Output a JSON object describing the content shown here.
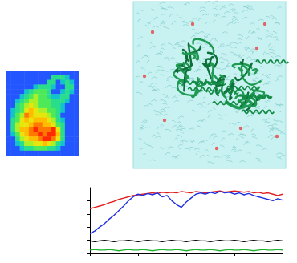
{
  "chart_data": [
    {
      "type": "heatmap",
      "cells": [
        [
          0,
          0,
          0,
          0,
          0,
          0,
          0,
          0,
          0,
          0,
          0,
          0,
          0,
          0,
          0,
          0
        ],
        [
          0,
          0,
          0,
          0,
          0,
          0,
          0,
          0,
          0,
          0,
          3,
          3,
          3,
          2,
          0,
          0
        ],
        [
          0,
          0,
          0,
          0,
          0,
          0,
          0,
          0,
          0,
          3,
          3,
          0,
          2,
          3,
          2,
          0
        ],
        [
          0,
          0,
          0,
          0,
          0,
          0,
          2,
          3,
          3,
          3,
          2,
          0,
          0,
          3,
          3,
          0
        ],
        [
          0,
          0,
          0,
          0,
          2,
          3,
          4,
          4,
          4,
          3,
          0,
          0,
          2,
          3,
          2,
          0
        ],
        [
          0,
          0,
          0,
          2,
          3,
          4,
          5,
          4,
          4,
          3,
          2,
          2,
          3,
          3,
          0,
          0
        ],
        [
          0,
          0,
          2,
          3,
          4,
          5,
          5,
          4,
          4,
          4,
          3,
          3,
          3,
          2,
          0,
          0
        ],
        [
          0,
          0,
          3,
          4,
          5,
          6,
          5,
          4,
          4,
          4,
          3,
          3,
          2,
          0,
          0,
          0
        ],
        [
          0,
          2,
          3,
          4,
          6,
          7,
          6,
          5,
          5,
          4,
          4,
          3,
          2,
          0,
          0,
          0
        ],
        [
          0,
          2,
          4,
          5,
          8,
          7,
          6,
          6,
          6,
          5,
          4,
          3,
          0,
          0,
          0,
          0
        ],
        [
          0,
          3,
          4,
          6,
          7,
          6,
          7,
          7,
          7,
          6,
          5,
          3,
          2,
          0,
          0,
          0
        ],
        [
          0,
          3,
          5,
          6,
          6,
          7,
          8,
          8,
          7,
          7,
          6,
          4,
          3,
          0,
          0,
          0
        ],
        [
          0,
          3,
          5,
          7,
          7,
          8,
          9,
          8,
          8,
          8,
          9,
          6,
          3,
          0,
          0,
          0
        ],
        [
          0,
          2,
          4,
          6,
          7,
          8,
          8,
          9,
          8,
          9,
          9,
          7,
          3,
          0,
          0,
          0
        ],
        [
          0,
          0,
          3,
          5,
          6,
          7,
          7,
          8,
          9,
          9,
          8,
          6,
          3,
          0,
          0,
          0
        ],
        [
          0,
          0,
          2,
          3,
          5,
          5,
          6,
          6,
          7,
          6,
          5,
          3,
          2,
          0,
          0,
          0
        ],
        [
          0,
          0,
          0,
          2,
          3,
          3,
          4,
          4,
          4,
          3,
          3,
          2,
          0,
          0,
          0,
          0
        ],
        [
          0,
          0,
          0,
          0,
          0,
          0,
          0,
          0,
          0,
          0,
          0,
          0,
          0,
          0,
          0,
          0
        ]
      ]
    },
    {
      "type": "line",
      "x": [
        0,
        1,
        2,
        3,
        4,
        5,
        6,
        7,
        8,
        9,
        10,
        11,
        12,
        13,
        14,
        15,
        16,
        17,
        18,
        19,
        20,
        21,
        22,
        23,
        24,
        25,
        26,
        27,
        28,
        29,
        30,
        31,
        32,
        33,
        34,
        35,
        36,
        37,
        38,
        39,
        40
      ],
      "xlim": [
        0,
        40
      ],
      "xticks": [
        0,
        10,
        20,
        30,
        40
      ],
      "ylim": [
        0,
        1
      ],
      "yticks": [
        0,
        0.2,
        0.4,
        0.6,
        0.8,
        1
      ],
      "tick_labels": false,
      "grid": false,
      "series": [
        {
          "color": "#e02020",
          "values": [
            0.68,
            0.7,
            0.72,
            0.74,
            0.77,
            0.79,
            0.82,
            0.84,
            0.86,
            0.88,
            0.89,
            0.9,
            0.91,
            0.92,
            0.91,
            0.93,
            0.92,
            0.93,
            0.92,
            0.94,
            0.93,
            0.92,
            0.94,
            0.93,
            0.92,
            0.93,
            0.94,
            0.95,
            0.93,
            0.94,
            0.95,
            0.94,
            0.93,
            0.94,
            0.92,
            0.93,
            0.91,
            0.92,
            0.9,
            0.88,
            0.9
          ]
        },
        {
          "color": "#2030e0",
          "values": [
            0.3,
            0.34,
            0.4,
            0.45,
            0.52,
            0.58,
            0.65,
            0.72,
            0.8,
            0.86,
            0.9,
            0.88,
            0.91,
            0.89,
            0.92,
            0.86,
            0.88,
            0.8,
            0.74,
            0.7,
            0.78,
            0.84,
            0.9,
            0.92,
            0.9,
            0.93,
            0.91,
            0.94,
            0.92,
            0.93,
            0.9,
            0.92,
            0.89,
            0.91,
            0.88,
            0.86,
            0.84,
            0.82,
            0.8,
            0.83,
            0.81
          ]
        },
        {
          "color": "#000000",
          "values": [
            0.19,
            0.18,
            0.19,
            0.2,
            0.19,
            0.18,
            0.19,
            0.19,
            0.2,
            0.19,
            0.18,
            0.19,
            0.2,
            0.19,
            0.19,
            0.18,
            0.19,
            0.2,
            0.19,
            0.19,
            0.18,
            0.19,
            0.2,
            0.19,
            0.19,
            0.18,
            0.19,
            0.2,
            0.19,
            0.19,
            0.2,
            0.19,
            0.18,
            0.19,
            0.2,
            0.19,
            0.19,
            0.18,
            0.19,
            0.2,
            0.19
          ]
        },
        {
          "color": "#20b030",
          "values": [
            0.05,
            0.06,
            0.05,
            0.05,
            0.06,
            0.05,
            0.04,
            0.05,
            0.06,
            0.05,
            0.05,
            0.06,
            0.05,
            0.04,
            0.05,
            0.06,
            0.05,
            0.05,
            0.06,
            0.05,
            0.04,
            0.05,
            0.06,
            0.05,
            0.05,
            0.06,
            0.05,
            0.04,
            0.05,
            0.06,
            0.05,
            0.05,
            0.06,
            0.05,
            0.04,
            0.05,
            0.06,
            0.05,
            0.05,
            0.06,
            0.05
          ]
        }
      ]
    }
  ]
}
